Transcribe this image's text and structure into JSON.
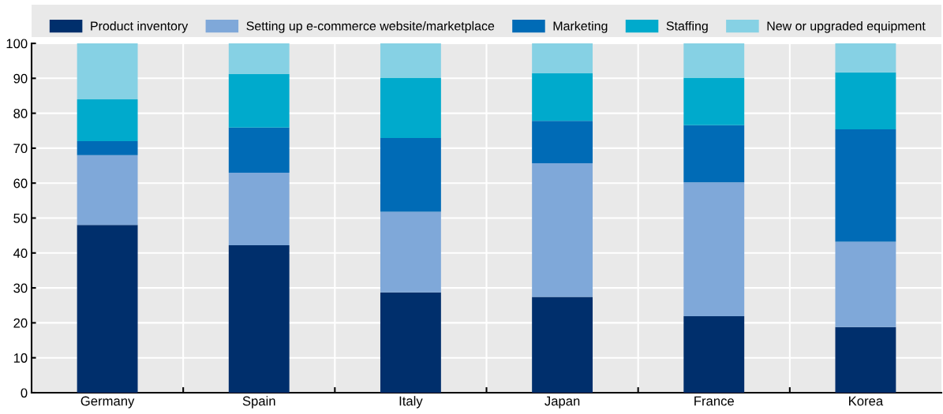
{
  "chart_data": {
    "type": "bar",
    "stacked": true,
    "categories": [
      "Germany",
      "Spain",
      "Italy",
      "Japan",
      "France",
      "Korea"
    ],
    "series": [
      {
        "name": "Product inventory",
        "color": "#002f6c",
        "values": [
          48,
          42.2,
          28.7,
          27.4,
          21.9,
          18.8
        ]
      },
      {
        "name": "Setting up e-commerce website/marketplace",
        "color": "#7fa8d9",
        "values": [
          20,
          20.8,
          23.1,
          38.3,
          38.3,
          24.4
        ]
      },
      {
        "name": "Marketing",
        "color": "#006bb6",
        "values": [
          4,
          12.9,
          21.1,
          12.1,
          16.4,
          32.2
        ]
      },
      {
        "name": "Staffing",
        "color": "#00aacc",
        "values": [
          12,
          15.3,
          17.3,
          13.6,
          13.6,
          16.3
        ]
      },
      {
        "name": "New or upgraded equipment",
        "color": "#86d1e4",
        "values": [
          16,
          8.8,
          9.8,
          8.6,
          9.8,
          8.3
        ]
      }
    ],
    "ylim": [
      0,
      100
    ],
    "yticks": [
      0,
      10,
      20,
      30,
      40,
      50,
      60,
      70,
      80,
      90,
      100
    ],
    "grid": true,
    "legend": "top"
  }
}
